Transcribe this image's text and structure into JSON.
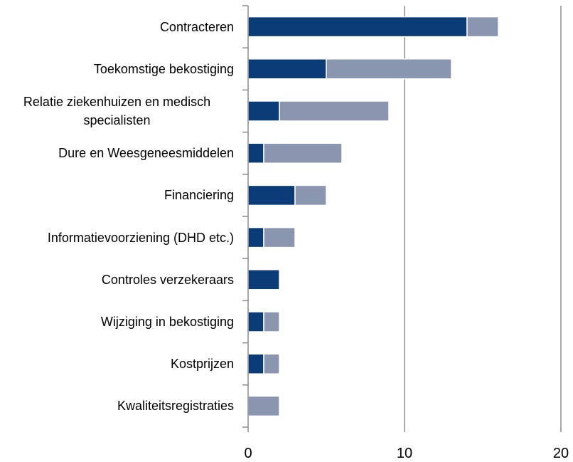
{
  "chart_data": {
    "type": "stacked-bar-horizontal",
    "categories": [
      "Contracteren",
      "Toekomstige bekostiging",
      "Relatie ziekenhuizen en medisch specialisten",
      "Dure en Weesgeneesmiddelen",
      "Financiering",
      "Informatievoorziening (DHD etc.)",
      "Controles verzekeraars",
      "Wijziging in bekostiging",
      "Kostprijzen",
      "Kwaliteitsregistraties"
    ],
    "series": [
      {
        "color": "#0b3b77",
        "values": [
          14,
          5,
          2,
          1,
          3,
          1,
          2,
          1,
          1,
          0
        ]
      },
      {
        "color": "#8a95b0",
        "values": [
          2,
          8,
          7,
          5,
          2,
          2,
          0,
          1,
          1,
          2
        ]
      }
    ],
    "xlim": [
      0,
      20
    ],
    "xticks": [
      0,
      10,
      20
    ],
    "grid": true
  }
}
